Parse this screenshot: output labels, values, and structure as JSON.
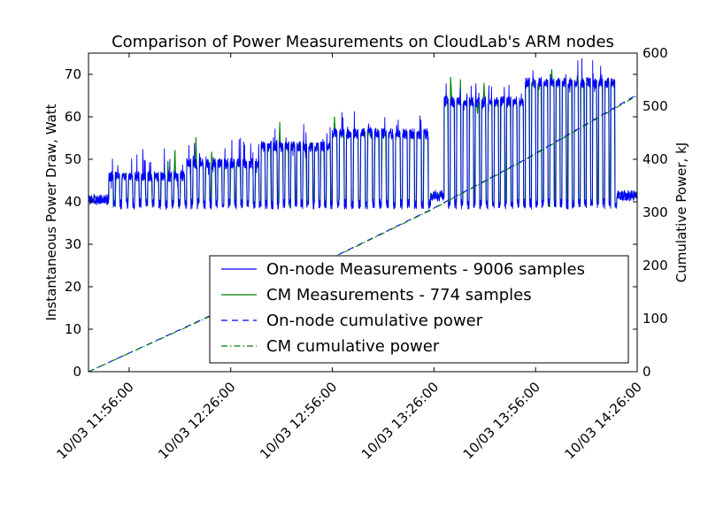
{
  "chart_data": {
    "type": "line",
    "title": "Comparison of Power Measurements on CloudLab's ARM nodes",
    "ylabel": "Instantaneous Power Draw, Watt",
    "y2label": "Cumulative Power, kJ",
    "xlabel": "",
    "x_ticks": [
      "10/03 11:56:00",
      "10/03 12:26:00",
      "10/03 12:56:00",
      "10/03 13:26:00",
      "10/03 13:56:00",
      "10/03 14:26:00"
    ],
    "x_range": [
      "10/03 11:44:00",
      "10/03 14:26:00"
    ],
    "ylim": [
      0,
      75
    ],
    "y_ticks": [
      0,
      10,
      20,
      30,
      40,
      50,
      60,
      70
    ],
    "y2lim": [
      0,
      600
    ],
    "y2_ticks": [
      0,
      100,
      200,
      300,
      400,
      500,
      600
    ],
    "grid": false,
    "legend_position": "lower-right",
    "phases": [
      {
        "start": "10/03 11:44:00",
        "end": "10/03 11:50:00",
        "idle": 40.5,
        "busy": 40.5,
        "cycles": 0
      },
      {
        "start": "10/03 11:50:00",
        "end": "10/03 12:13:00",
        "idle": 39.5,
        "busy": 46,
        "cycles": 12
      },
      {
        "start": "10/03 12:13:00",
        "end": "10/03 12:35:00",
        "idle": 39.5,
        "busy": 49,
        "cycles": 12
      },
      {
        "start": "10/03 12:35:00",
        "end": "10/03 12:56:00",
        "idle": 39.5,
        "busy": 53,
        "cycles": 12
      },
      {
        "start": "10/03 12:56:00",
        "end": "10/03 13:25:00",
        "idle": 39.5,
        "busy": 56,
        "cycles": 14
      },
      {
        "start": "10/03 13:25:00",
        "end": "10/03 13:29:00",
        "idle": 41.5,
        "busy": 41.5,
        "cycles": 0
      },
      {
        "start": "10/03 13:29:00",
        "end": "10/03 13:53:00",
        "idle": 39.5,
        "busy": 63.5,
        "cycles": 13
      },
      {
        "start": "10/03 13:53:00",
        "end": "10/03 14:20:00",
        "idle": 39.5,
        "busy": 68,
        "cycles": 15
      },
      {
        "start": "10/03 14:20:00",
        "end": "10/03 14:26:00",
        "idle": 41.5,
        "busy": 41.5,
        "cycles": 0
      }
    ],
    "series": [
      {
        "name": "On-node Measurements - 9006 samples",
        "axis": "left",
        "style": "solid",
        "color": "#0000ff"
      },
      {
        "name": "CM Measurements - 774 samples",
        "axis": "left",
        "style": "solid",
        "color": "#008000"
      },
      {
        "name": "On-node cumulative power",
        "axis": "right",
        "style": "dashed",
        "color": "#0000ff",
        "x": [
          "10/03 11:44:00",
          "10/03 12:13:00",
          "10/03 12:35:00",
          "10/03 12:56:00",
          "10/03 13:25:00",
          "10/03 13:53:00",
          "10/03 14:26:00"
        ],
        "values": [
          0,
          85,
          150,
          215,
          305,
          400,
          522
        ]
      },
      {
        "name": "CM cumulative power",
        "axis": "right",
        "style": "dashdot",
        "color": "#008000",
        "x": [
          "10/03 11:44:00",
          "10/03 12:13:00",
          "10/03 12:35:00",
          "10/03 12:56:00",
          "10/03 13:25:00",
          "10/03 13:53:00",
          "10/03 14:26:00"
        ],
        "values": [
          0,
          84,
          149,
          214,
          304,
          399,
          520
        ]
      }
    ]
  }
}
